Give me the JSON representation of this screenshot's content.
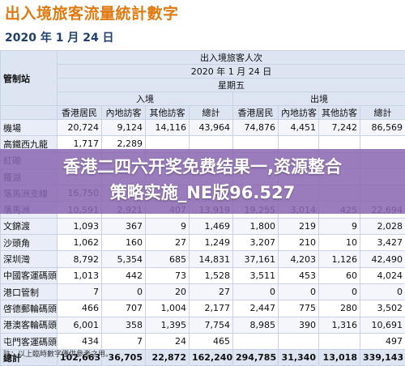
{
  "page": {
    "title": "出入境旅客流量統計數字",
    "date": "2020 年 1 月 24 日",
    "note": "註：以上臨時數字僅供參考之用。"
  },
  "table": {
    "corner_label": "管制站",
    "header_title": "出入境旅客人次",
    "header_date": "2020 年 1 月 24 日",
    "header_weekday": "星期五",
    "arrival_label": "入境",
    "departure_label": "出境",
    "subheaders": [
      "香港居民",
      "內地訪客",
      "其他訪客",
      "總計",
      "香港居民",
      "內地訪客",
      "其他訪客",
      "總計"
    ],
    "rows": [
      {
        "name": "機場",
        "values": [
          "20,724",
          "9,124",
          "14,116",
          "43,964",
          "74,876",
          "4,451",
          "7,242",
          "86,569"
        ]
      },
      {
        "name": "高鐵西九龍",
        "values": [
          "1,717",
          "2,289",
          "",
          "",
          "",
          "",
          "",
          ""
        ]
      },
      {
        "name": "紅磡",
        "values": [
          "",
          "",
          "",
          "",
          "",
          "",
          "",
          ""
        ]
      },
      {
        "name": "羅湖",
        "values": [
          "",
          "",
          "",
          "",
          "",
          "",
          "",
          ""
        ]
      },
      {
        "name": "落馬洲支線",
        "values": [
          "16,750",
          "",
          "",
          "",
          "",
          "",
          "",
          ""
        ]
      },
      {
        "name": "落馬洲",
        "values": [
          "10,591",
          "2,921",
          "407",
          "13,919",
          "19,255",
          "3,014",
          "425",
          "22,694"
        ]
      },
      {
        "name": "文錦渡",
        "values": [
          "1,093",
          "367",
          "9",
          "1,469",
          "1,800",
          "219",
          "9",
          "2,028"
        ]
      },
      {
        "name": "沙頭角",
        "values": [
          "1,062",
          "160",
          "27",
          "1,249",
          "3,207",
          "210",
          "10",
          "3,427"
        ]
      },
      {
        "name": "深圳灣",
        "values": [
          "8,792",
          "5,354",
          "685",
          "14,831",
          "37,161",
          "4,203",
          "1,126",
          "42,490"
        ]
      },
      {
        "name": "中國客運碼頭",
        "values": [
          "1,013",
          "442",
          "73",
          "1,528",
          "3,511",
          "453",
          "60",
          "4,024"
        ]
      },
      {
        "name": "港口管制",
        "values": [
          "7",
          "0",
          "20",
          "27",
          "0",
          "0",
          "0",
          "0"
        ]
      },
      {
        "name": "啓德郵輪碼頭",
        "values": [
          "466",
          "707",
          "1,004",
          "2,177",
          "2,447",
          "775",
          "280",
          "3,502"
        ]
      },
      {
        "name": "港澳客輪碼頭",
        "values": [
          "6,001",
          "358",
          "1,395",
          "7,754",
          "8,985",
          "390",
          "1,316",
          "10,691"
        ]
      },
      {
        "name": "屯門客運碼頭",
        "values": [
          "434",
          "7",
          "24",
          "465",
          "",
          "",
          "",
          "497"
        ]
      }
    ],
    "total": {
      "name": "總計",
      "values": [
        "102,663",
        "36,705",
        "22,872",
        "162,240",
        "294,785",
        "31,340",
        "13,018",
        "339,143"
      ]
    }
  },
  "overlay": {
    "line1": "香港二四六开奖免费结果一,资源整合",
    "line2": "策略实施_NE版96.527",
    "bg_color": "#8a68b2"
  },
  "colors": {
    "title": "#e07a10",
    "header_bg": "#dde5f3",
    "border": "#c9d2e4"
  }
}
